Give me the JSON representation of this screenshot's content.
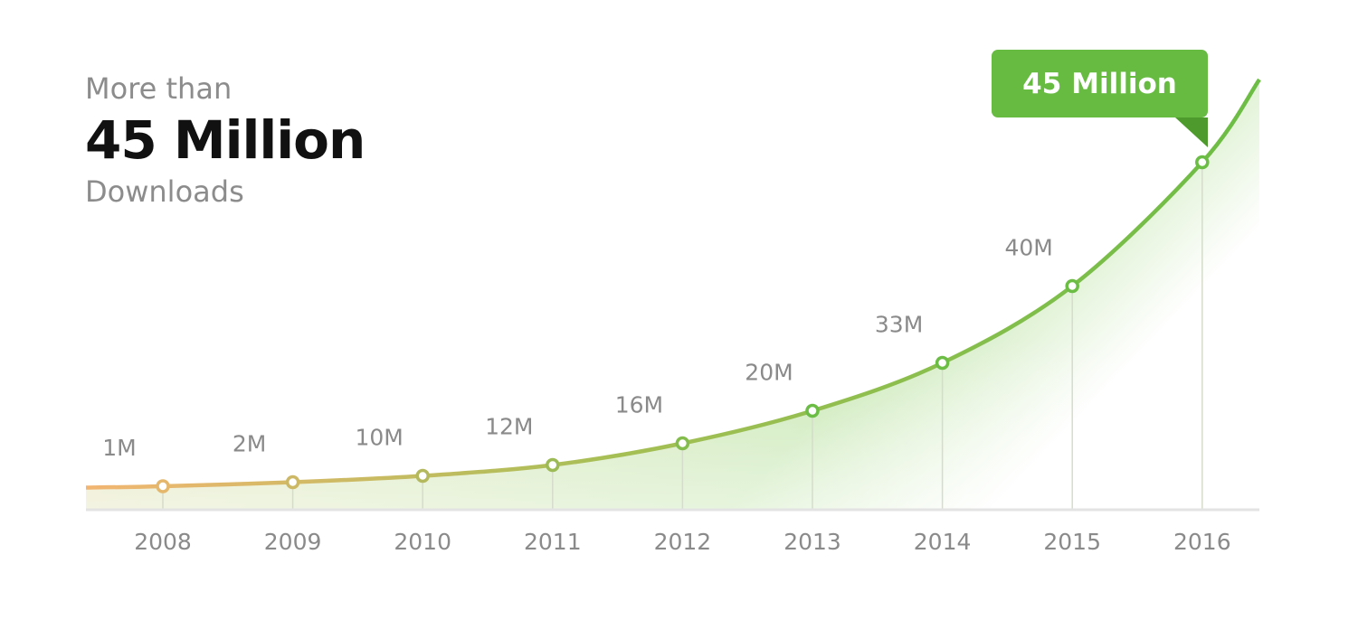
{
  "headline": {
    "prefix": "More than",
    "value": "45 Million",
    "suffix": "Downloads"
  },
  "callout": {
    "label": "45 Million"
  },
  "colors": {
    "start": "#f2b672",
    "end": "#6cbd45",
    "callout_bg": "#66bb40",
    "callout_fold": "#4f9a2d",
    "axis": "#e3e3e3",
    "label": "#8a8a8a"
  },
  "chart_data": {
    "type": "area",
    "title": "",
    "xlabel": "",
    "ylabel": "",
    "categories": [
      "2008",
      "2009",
      "2010",
      "2011",
      "2012",
      "2013",
      "2014",
      "2015",
      "2016"
    ],
    "values": [
      1,
      2,
      10,
      12,
      16,
      20,
      33,
      40,
      45
    ],
    "data_labels": [
      "1M",
      "2M",
      "10M",
      "12M",
      "16M",
      "20M",
      "33M",
      "40M",
      ""
    ],
    "grid": false,
    "legend": "none"
  }
}
